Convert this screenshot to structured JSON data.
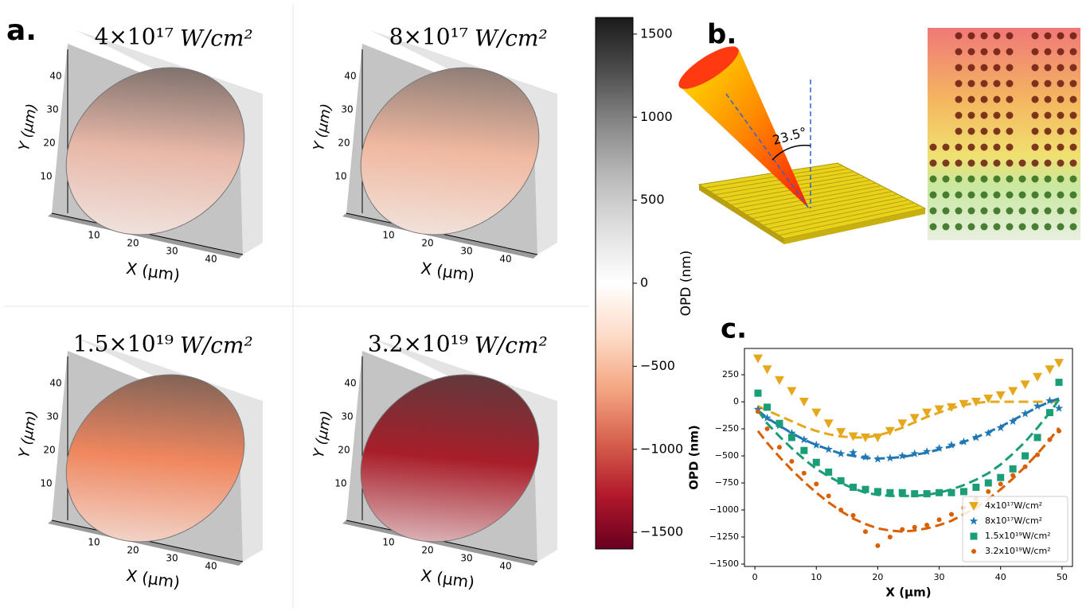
{
  "panel_labels": [
    "a.",
    "b.",
    "c."
  ],
  "surface_plots": {
    "panels": [
      {
        "title": "4×10¹⁷",
        "unit": "W/cm²"
      },
      {
        "title": "8×10¹⁷",
        "unit": "W/cm²"
      },
      {
        "title": "1.5×10¹⁹",
        "unit": "W/cm²"
      },
      {
        "title": "3.2×10¹⁹",
        "unit": "W/cm²"
      }
    ],
    "xlabel": "X  (μm)",
    "ylabel": "Y (μm)",
    "xticks": [
      10,
      20,
      30,
      40
    ],
    "yticks": [
      10,
      20,
      30,
      40
    ]
  },
  "angle_label": "23.5°",
  "chart_data": [
    {
      "type": "colorbar",
      "label": "OPD (nm)",
      "colors": [
        "#67001f",
        "#b2182b",
        "#d6604d",
        "#f4a582",
        "#fddbc7",
        "#ffffff",
        "#e0e0e0",
        "#bababa",
        "#878787",
        "#4d4d4d",
        "#1a1a1a"
      ],
      "ylim": [
        -1600,
        1600
      ],
      "yticks": [
        {
          "value": -1500,
          "label": "−1500"
        },
        {
          "value": -1000,
          "label": "−1000"
        },
        {
          "value": -500,
          "label": "−500"
        },
        0,
        500,
        1000,
        1500
      ]
    },
    {
      "type": "scatter",
      "xlabel": "X (μm)",
      "ylabel": "OPD (nm)",
      "legend": "lower right",
      "x": [
        0.5,
        2,
        4,
        6,
        8,
        10,
        12,
        14,
        16,
        18,
        20,
        22,
        24,
        26,
        28,
        30,
        32,
        34,
        36,
        38,
        40,
        42,
        44,
        46,
        48,
        49.5
      ],
      "xlim": [
        -1.7,
        51.7
      ],
      "xticks": [
        0,
        10,
        20,
        30,
        40,
        50
      ],
      "ylim": [
        -1522,
        493
      ],
      "yticks": [
        {
          "value": -1500,
          "label": "−1500"
        },
        {
          "value": -1250,
          "label": "−1250"
        },
        {
          "value": -1000,
          "label": "−1000"
        },
        {
          "value": -750,
          "label": "−750"
        },
        {
          "value": -500,
          "label": "−500"
        },
        {
          "value": -250,
          "label": "−250"
        },
        0,
        250
      ],
      "series": [
        {
          "name": "4x10¹⁷W/cm²",
          "color": "#e5a81c",
          "marker": "triangle",
          "values": [
            400,
            300,
            200,
            100,
            0,
            -100,
            -200,
            -280,
            -320,
            -330,
            -330,
            -270,
            -200,
            -150,
            -100,
            -70,
            -50,
            -20,
            0,
            30,
            60,
            100,
            160,
            230,
            300,
            360
          ],
          "fit": [
            -40,
            -80,
            -130,
            -180,
            -230,
            -270,
            -300,
            -320,
            -330,
            -330,
            -310,
            -280,
            -240,
            -190,
            -140,
            -100,
            -60,
            -30,
            -10,
            0,
            0,
            0,
            0,
            0,
            0,
            0
          ]
        },
        {
          "name": "8x10¹⁷W/cm²",
          "color": "#1f77b4",
          "marker": "star",
          "values": [
            -70,
            -150,
            -220,
            -290,
            -350,
            -400,
            -440,
            -480,
            -470,
            -510,
            -530,
            -520,
            -500,
            -480,
            -460,
            -430,
            -400,
            -370,
            -330,
            -290,
            -240,
            -180,
            -110,
            -40,
            10,
            -60
          ],
          "fit": [
            -80,
            -150,
            -220,
            -290,
            -350,
            -400,
            -440,
            -480,
            -500,
            -520,
            -525,
            -520,
            -510,
            -490,
            -470,
            -440,
            -410,
            -370,
            -330,
            -280,
            -230,
            -170,
            -110,
            -50,
            0,
            30
          ]
        },
        {
          "name": "1.5x10¹⁹W/cm²",
          "color": "#1b9e77",
          "marker": "square",
          "values": [
            80,
            -50,
            -200,
            -330,
            -450,
            -560,
            -650,
            -730,
            -790,
            -810,
            -830,
            -840,
            -840,
            -850,
            -850,
            -840,
            -840,
            -830,
            -790,
            -750,
            -700,
            -620,
            -500,
            -330,
            -100,
            180
          ],
          "fit": [
            -80,
            -200,
            -320,
            -430,
            -530,
            -620,
            -690,
            -750,
            -800,
            -840,
            -860,
            -870,
            -870,
            -870,
            -860,
            -840,
            -810,
            -770,
            -720,
            -660,
            -580,
            -480,
            -370,
            -240,
            -100,
            20
          ]
        },
        {
          "name": "3.2x10¹⁹W/cm²",
          "color": "#d95f02",
          "marker": "circle",
          "values": [
            -90,
            -250,
            -420,
            -550,
            -660,
            -760,
            -870,
            -1000,
            -1050,
            -1200,
            -1330,
            -1250,
            -1180,
            -1160,
            -1140,
            -1090,
            -1040,
            -980,
            -900,
            -830,
            -760,
            -680,
            -600,
            -490,
            -350,
            -270
          ],
          "fit": [
            -270,
            -380,
            -510,
            -630,
            -740,
            -840,
            -930,
            -1010,
            -1080,
            -1130,
            -1170,
            -1190,
            -1200,
            -1190,
            -1170,
            -1140,
            -1100,
            -1040,
            -980,
            -900,
            -810,
            -710,
            -600,
            -480,
            -350,
            -240
          ]
        }
      ]
    }
  ]
}
